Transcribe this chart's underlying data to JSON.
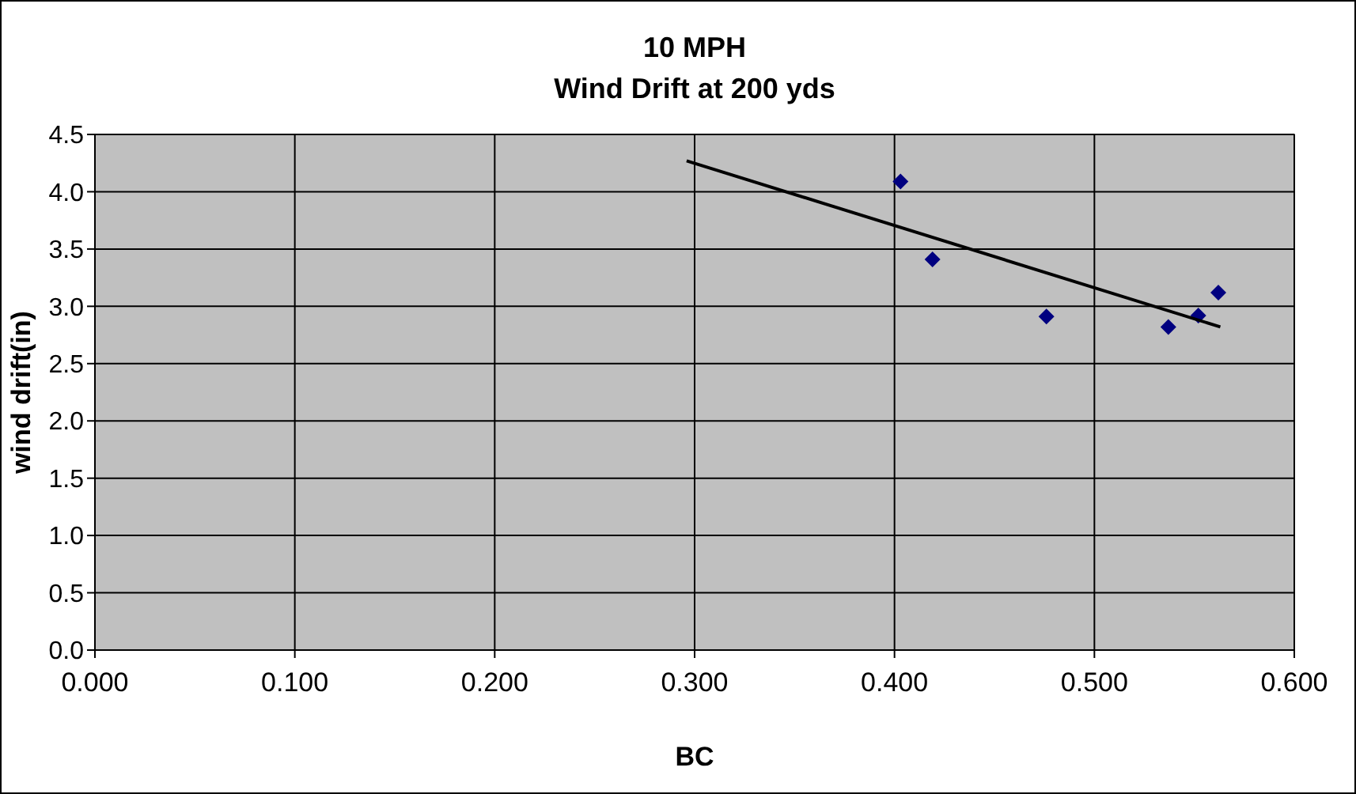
{
  "chart_data": {
    "type": "scatter",
    "title": "10 MPH\nWind Drift at 200 yds",
    "xlabel": "BC",
    "ylabel": "wind drift(in)",
    "xlim": [
      0,
      0.6
    ],
    "xticks": [
      {
        "value": 0,
        "label": "0.000"
      },
      {
        "value": 0.1,
        "label": "0.100"
      },
      {
        "value": 0.2,
        "label": "0.200"
      },
      {
        "value": 0.3,
        "label": "0.300"
      },
      {
        "value": 0.4,
        "label": "0.400"
      },
      {
        "value": 0.5,
        "label": "0.500"
      },
      {
        "value": 0.6,
        "label": "0.600"
      }
    ],
    "ylim": [
      0,
      4.5
    ],
    "yticks": [
      {
        "value": 0,
        "label": "0.0"
      },
      {
        "value": 0.5,
        "label": "0.5"
      },
      {
        "value": 1,
        "label": "1.0"
      },
      {
        "value": 1.5,
        "label": "1.5"
      },
      {
        "value": 2,
        "label": "2.0"
      },
      {
        "value": 2.5,
        "label": "2.5"
      },
      {
        "value": 3,
        "label": "3.0"
      },
      {
        "value": 3.5,
        "label": "3.5"
      },
      {
        "value": 4,
        "label": "4.0"
      },
      {
        "value": 4.5,
        "label": "4.5"
      }
    ],
    "grid": true,
    "marker": "diamond",
    "series": [
      {
        "type": "scatter",
        "color": "#000080",
        "x": [
          0.403,
          0.419,
          0.476,
          0.537,
          0.552,
          0.562
        ],
        "values": [
          4.09,
          3.41,
          2.91,
          2.82,
          2.92,
          3.12
        ]
      },
      {
        "type": "line",
        "color": "#000000",
        "marker": "none",
        "x": [
          0.296,
          0.563
        ],
        "values": [
          4.27,
          2.82
        ]
      }
    ]
  }
}
